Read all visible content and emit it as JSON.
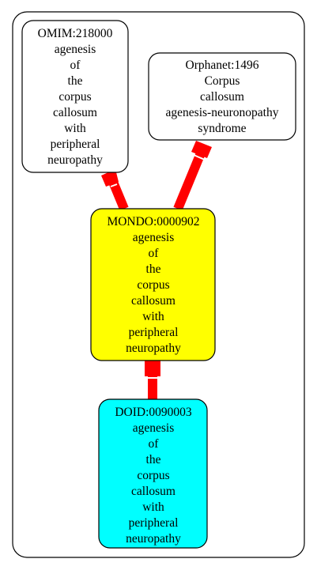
{
  "colors": {
    "edge": "#ff0000",
    "border": "#000000",
    "background": "#ffffff",
    "node_default": "#ffffff",
    "node_focus": "#ffff00",
    "node_doid": "#00ffff"
  },
  "nodes": {
    "omim": {
      "id": "OMIM:218000",
      "lines": [
        "agenesis",
        "of",
        "the",
        "corpus",
        "callosum",
        "with",
        "peripheral",
        "neuropathy"
      ],
      "fill": "#ffffff"
    },
    "orphanet": {
      "id": "Orphanet:1496",
      "lines": [
        "Corpus",
        "callosum",
        "agenesis-neuronopathy",
        "syndrome"
      ],
      "fill": "#ffffff"
    },
    "mondo": {
      "id": "MONDO:0000902",
      "lines": [
        "agenesis",
        "of",
        "the",
        "corpus",
        "callosum",
        "with",
        "peripheral",
        "neuropathy"
      ],
      "fill": "#ffff00"
    },
    "doid": {
      "id": "DOID:0090003",
      "lines": [
        "agenesis",
        "of",
        "the",
        "corpus",
        "callosum",
        "with",
        "peripheral",
        "neuropathy"
      ],
      "fill": "#00ffff"
    }
  },
  "edges": [
    {
      "from": "omim",
      "to": "mondo"
    },
    {
      "from": "orphanet",
      "to": "mondo"
    },
    {
      "from": "mondo",
      "to": "doid"
    }
  ]
}
